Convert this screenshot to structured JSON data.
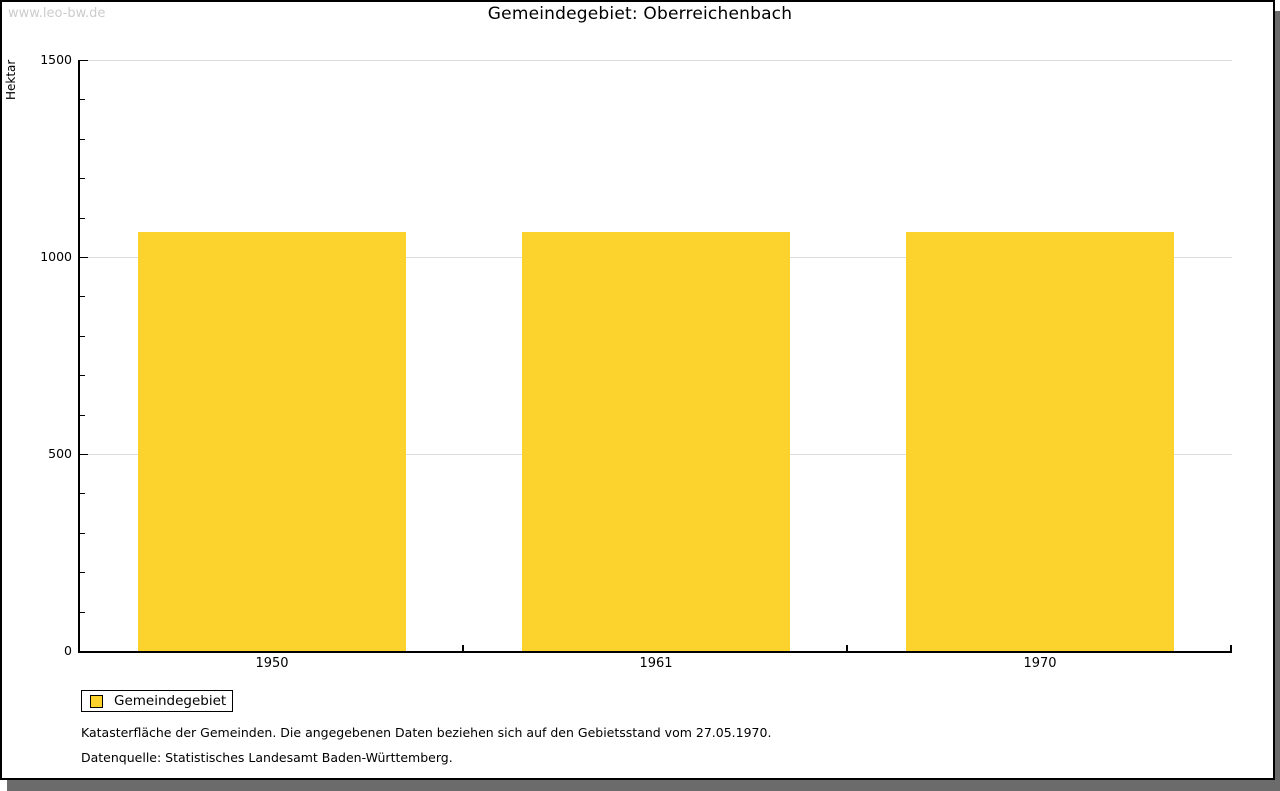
{
  "page": {
    "watermark": "www.leo-bw.de",
    "title": "Gemeindegebiet: Oberreichenbach",
    "footnote1": "Katasterfläche der Gemeinden. Die angegebenen Daten beziehen sich auf den Gebietsstand vom 27.05.1970.",
    "footnote2": "Datenquelle: Statistisches Landesamt Baden-Württemberg."
  },
  "legend": {
    "label": "Gemeindegebiet",
    "swatch_color": "#FCD32D"
  },
  "chart_data": {
    "type": "bar",
    "title": "Gemeindegebiet: Oberreichenbach",
    "categories": [
      "1950",
      "1961",
      "1970"
    ],
    "series": [
      {
        "name": "Gemeindegebiet",
        "values": [
          1063,
          1063,
          1063
        ],
        "color": "#FCD32D"
      }
    ],
    "xlabel": "",
    "ylabel": "Hektar",
    "ylim": [
      0,
      1500
    ],
    "yticks": [
      0,
      500,
      1000,
      1500
    ],
    "minor_tick_step": 100,
    "grid": "horizontal-major",
    "gridline_color": "#DCDCDC",
    "legend_position": "bottom-left"
  },
  "colors": {
    "bar": "#FCD32D",
    "gridline": "#DCDCDC",
    "axis": "#000000",
    "watermark": "#CCCCCC",
    "frame_shadow": "#6B6B6B"
  }
}
